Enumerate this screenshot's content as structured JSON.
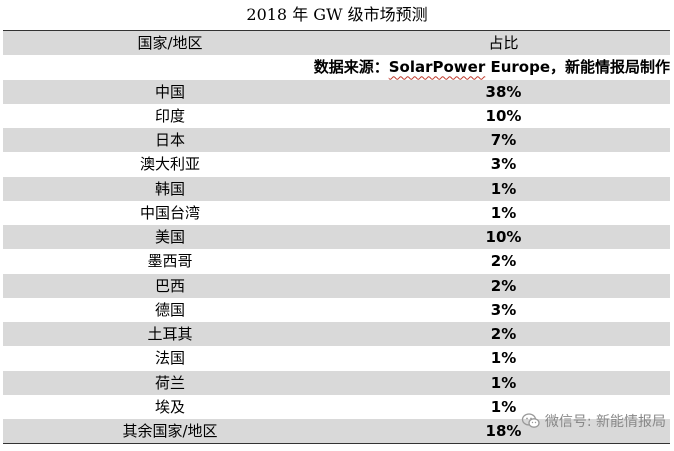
{
  "title": "2018 年 GW 级市场预测",
  "header": {
    "region": "国家/地区",
    "share": "占比"
  },
  "source": {
    "prefix": "数据来源：",
    "name": "SolarPower",
    "suffix": " Europe，新能情报局制作"
  },
  "rows": [
    {
      "region": "中国",
      "share": "38%"
    },
    {
      "region": "印度",
      "share": "10%"
    },
    {
      "region": "日本",
      "share": "7%"
    },
    {
      "region": "澳大利亚",
      "share": "3%"
    },
    {
      "region": "韩国",
      "share": "1%"
    },
    {
      "region": "中国台湾",
      "share": "1%"
    },
    {
      "region": "美国",
      "share": "10%"
    },
    {
      "region": "墨西哥",
      "share": "2%"
    },
    {
      "region": "巴西",
      "share": "2%"
    },
    {
      "region": "德国",
      "share": "3%"
    },
    {
      "region": "土耳其",
      "share": "2%"
    },
    {
      "region": "法国",
      "share": "1%"
    },
    {
      "region": "荷兰",
      "share": "1%"
    },
    {
      "region": "埃及",
      "share": "1%"
    },
    {
      "region": "其余国家/地区",
      "share": "18%"
    }
  ],
  "watermark": {
    "icon": "wechat-icon",
    "text": "微信号: 新能情报局"
  }
}
